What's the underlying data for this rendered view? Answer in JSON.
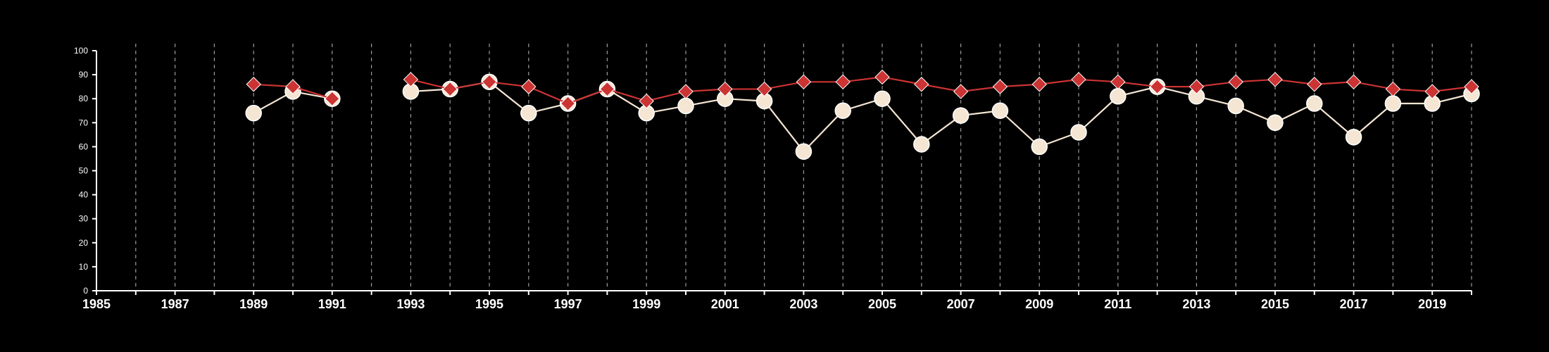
{
  "chart_data": {
    "type": "line",
    "title": "",
    "xlabel": "",
    "ylabel": "",
    "xlim": [
      1985,
      2020
    ],
    "ylim": [
      0,
      100
    ],
    "y_ticks": [
      0,
      10,
      20,
      30,
      40,
      50,
      60,
      70,
      80,
      90,
      100
    ],
    "x_ticks": [
      1985,
      1987,
      1989,
      1991,
      1993,
      1995,
      1997,
      1999,
      2001,
      2003,
      2005,
      2007,
      2009,
      2011,
      2013,
      2015,
      2017,
      2019
    ],
    "grid": "vertical dashed at every year",
    "legend": "none",
    "series": [
      {
        "marker": "circle",
        "color": "#f5e6d3",
        "x": [
          1989,
          1990,
          1991,
          1993,
          1994,
          1995,
          1996,
          1997,
          1998,
          1999,
          2000,
          2001,
          2002,
          2003,
          2004,
          2005,
          2006,
          2007,
          2008,
          2009,
          2010,
          2011,
          2012,
          2013,
          2014,
          2015,
          2016,
          2017,
          2018,
          2019,
          2020
        ],
        "values": [
          74,
          83,
          80,
          83,
          84,
          87,
          74,
          78,
          84,
          74,
          77,
          80,
          79,
          58,
          75,
          80,
          61,
          73,
          75,
          60,
          66,
          81,
          85,
          81,
          77,
          70,
          78,
          64,
          78,
          78,
          82
        ]
      },
      {
        "marker": "diamond",
        "color": "#cc3333",
        "x": [
          1989,
          1990,
          1991,
          1993,
          1994,
          1995,
          1996,
          1997,
          1998,
          1999,
          2000,
          2001,
          2002,
          2003,
          2004,
          2005,
          2006,
          2007,
          2008,
          2009,
          2010,
          2011,
          2012,
          2013,
          2014,
          2015,
          2016,
          2017,
          2018,
          2019,
          2020
        ],
        "values": [
          86,
          85,
          80,
          88,
          84,
          87,
          85,
          78,
          84,
          79,
          83,
          84,
          84,
          87,
          87,
          89,
          86,
          83,
          85,
          86,
          88,
          87,
          85,
          85,
          87,
          88,
          86,
          87,
          84,
          83,
          85
        ]
      }
    ]
  }
}
